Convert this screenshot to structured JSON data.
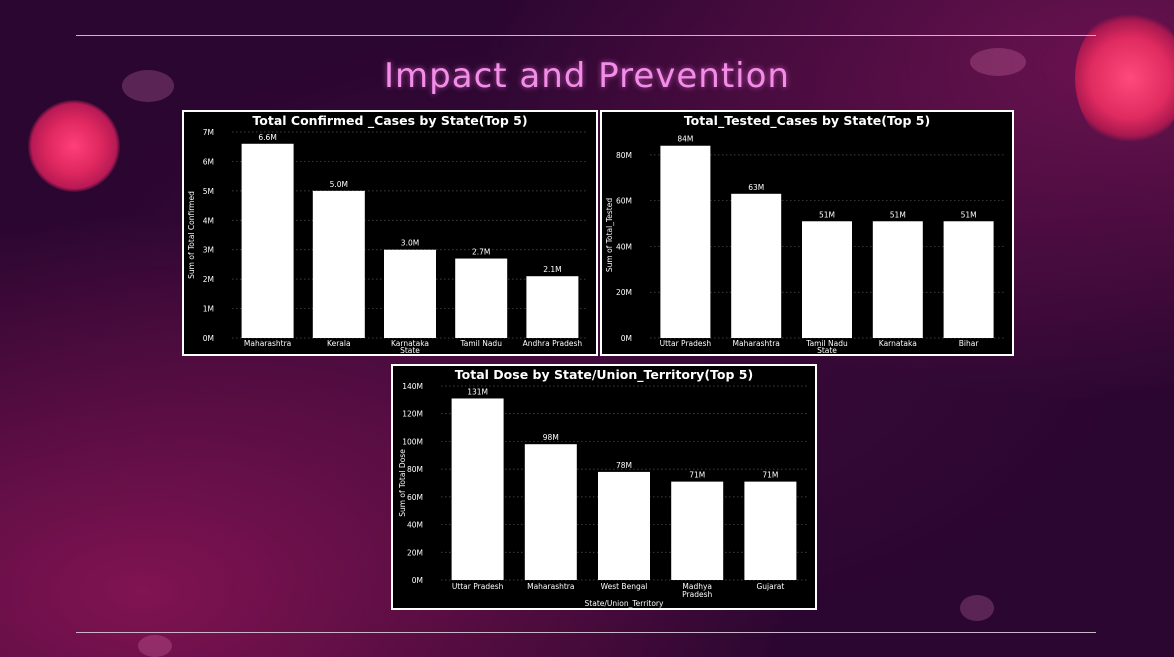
{
  "slide": {
    "title": "Impact and Prevention"
  },
  "chart_data": [
    {
      "id": "confirmed",
      "type": "bar",
      "title": "Total Confirmed _Cases by State(Top 5)",
      "xlabel": "State",
      "ylabel": "Sum of Total Confirmed",
      "categories": [
        "Maharashtra",
        "Kerala",
        "Karnataka",
        "Tamil Nadu",
        "Andhra Pradesh"
      ],
      "values": [
        6.6,
        5.0,
        3.0,
        2.7,
        2.1
      ],
      "data_labels": [
        "6.6M",
        "5.0M",
        "3.0M",
        "2.7M",
        "2.1M"
      ],
      "unit": "M",
      "ylim": [
        0,
        7
      ],
      "yticks": [
        0,
        1,
        2,
        3,
        4,
        5,
        6,
        7
      ],
      "ytick_labels": [
        "0M",
        "1M",
        "2M",
        "3M",
        "4M",
        "5M",
        "6M",
        "7M"
      ],
      "grid": true,
      "bar_color": "#ffffff",
      "background": "#000000"
    },
    {
      "id": "tested",
      "type": "bar",
      "title": "Total_Tested_Cases by State(Top 5)",
      "xlabel": "State",
      "ylabel": "Sum of Total_Tested",
      "categories": [
        "Uttar Pradesh",
        "Maharashtra",
        "Tamil Nadu",
        "Karnataka",
        "Bihar"
      ],
      "values": [
        84,
        63,
        51,
        51,
        51
      ],
      "data_labels": [
        "84M",
        "63M",
        "51M",
        "51M",
        "51M"
      ],
      "unit": "M",
      "ylim": [
        0,
        90
      ],
      "yticks": [
        0,
        20,
        40,
        60,
        80
      ],
      "ytick_labels": [
        "0M",
        "20M",
        "40M",
        "60M",
        "80M"
      ],
      "grid": true,
      "bar_color": "#ffffff",
      "background": "#000000"
    },
    {
      "id": "dose",
      "type": "bar",
      "title": "Total Dose by State/Union_Territory(Top 5)",
      "xlabel": "State/Union_Territory",
      "ylabel": "Sum of Total Dose",
      "categories": [
        "Uttar Pradesh",
        "Maharashtra",
        "West Bengal",
        "Madhya Pradesh",
        "Gujarat"
      ],
      "values": [
        131,
        98,
        78,
        71,
        71
      ],
      "data_labels": [
        "131M",
        "98M",
        "78M",
        "71M",
        "71M"
      ],
      "unit": "M",
      "ylim": [
        0,
        140
      ],
      "yticks": [
        0,
        20,
        40,
        60,
        80,
        100,
        120,
        140
      ],
      "ytick_labels": [
        "0M",
        "20M",
        "40M",
        "60M",
        "80M",
        "100M",
        "120M",
        "140M"
      ],
      "grid": true,
      "bar_color": "#ffffff",
      "background": "#000000"
    }
  ]
}
